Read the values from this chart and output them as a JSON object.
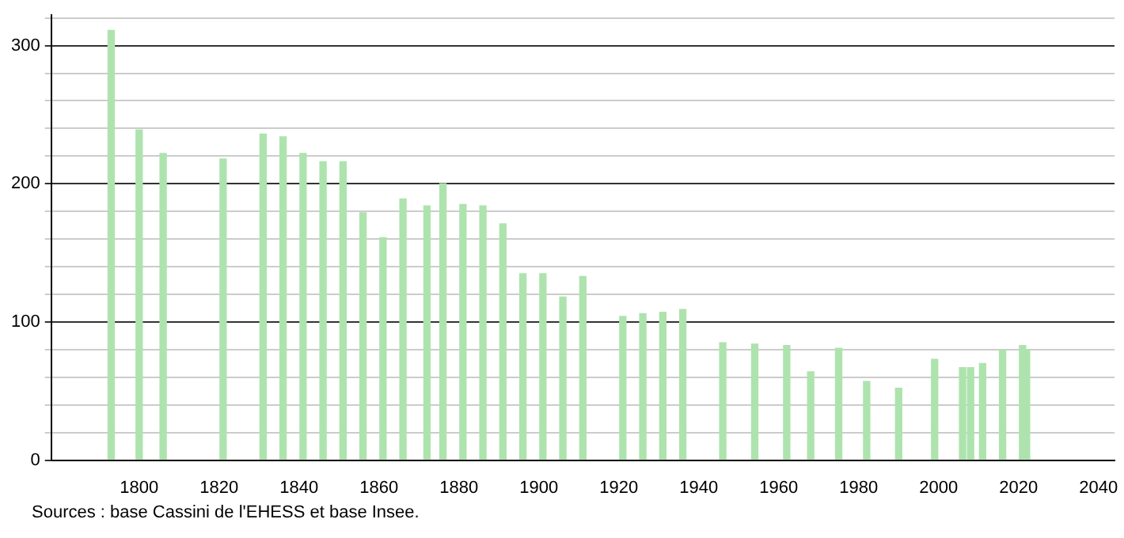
{
  "chart_data": {
    "type": "bar",
    "x": [
      1793,
      1800,
      1806,
      1821,
      1831,
      1836,
      1841,
      1846,
      1851,
      1856,
      1861,
      1866,
      1872,
      1876,
      1881,
      1886,
      1891,
      1896,
      1901,
      1906,
      1911,
      1921,
      1926,
      1931,
      1936,
      1946,
      1954,
      1962,
      1968,
      1975,
      1982,
      1990,
      1999,
      2006,
      2008,
      2011,
      2016,
      2021,
      2022
    ],
    "values": [
      311,
      239,
      222,
      218,
      236,
      234,
      222,
      216,
      216,
      179,
      161,
      189,
      184,
      200,
      185,
      184,
      171,
      135,
      135,
      118,
      133,
      104,
      106,
      107,
      109,
      85,
      84,
      83,
      64,
      81,
      57,
      52,
      73,
      67,
      67,
      70,
      80,
      83,
      80
    ],
    "color": "#aee3ae",
    "xlim": [
      1778,
      2044
    ],
    "xticks": [
      1800,
      1820,
      1840,
      1860,
      1880,
      1900,
      1920,
      1940,
      1960,
      1980,
      2000,
      2020,
      2040
    ],
    "ylim": [
      0,
      322
    ],
    "yticks": [
      0,
      {
        "value": 20,
        "label": null
      },
      {
        "value": 40,
        "label": null
      },
      {
        "value": 60,
        "label": null
      },
      {
        "value": 80,
        "label": null
      },
      100,
      {
        "value": 120,
        "label": null
      },
      {
        "value": 140,
        "label": null
      },
      {
        "value": 160,
        "label": null
      },
      {
        "value": 180,
        "label": null
      },
      200,
      {
        "value": 220,
        "label": null
      },
      {
        "value": 240,
        "label": null
      },
      {
        "value": 260,
        "label": null
      },
      {
        "value": 280,
        "label": null
      },
      300,
      {
        "value": 320,
        "label": null
      }
    ],
    "grid": "y",
    "legend": false,
    "annotations": [
      "Sources : base Cassini de l'EHESS et base Insee."
    ]
  }
}
